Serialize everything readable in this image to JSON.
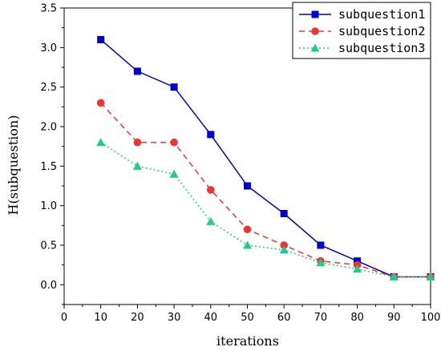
{
  "chart_data": {
    "type": "line",
    "title": "",
    "xlabel": "iterations",
    "ylabel": "H(subquestion)",
    "x": [
      10,
      20,
      30,
      40,
      50,
      60,
      70,
      80,
      90,
      100
    ],
    "xlim": [
      0,
      100
    ],
    "ylim": [
      -0.25,
      3.5
    ],
    "xticks": [
      "0",
      "10",
      "20",
      "30",
      "40",
      "50",
      "60",
      "70",
      "80",
      "90",
      "100"
    ],
    "yticks": [
      "0.0",
      "0.5",
      "1.0",
      "1.5",
      "2.0",
      "2.5",
      "3.0",
      "3.5"
    ],
    "grid": false,
    "legend_position": "top-right",
    "series": [
      {
        "name": "subquestion1",
        "values": [
          3.1,
          2.7,
          2.5,
          1.9,
          1.25,
          0.9,
          0.5,
          0.3,
          0.1,
          0.1
        ],
        "color": "#0000cc",
        "line_style": "solid",
        "marker": "square"
      },
      {
        "name": "subquestion2",
        "values": [
          2.3,
          1.8,
          1.8,
          1.2,
          0.7,
          0.5,
          0.3,
          0.25,
          0.1,
          0.1
        ],
        "color": "#ee3333",
        "line_style": "dashed",
        "marker": "circle"
      },
      {
        "name": "subquestion3",
        "values": [
          1.8,
          1.5,
          1.4,
          0.8,
          0.5,
          0.44,
          0.28,
          0.2,
          0.1,
          0.1
        ],
        "color": "#22cc88",
        "line_style": "dotted",
        "marker": "triangle"
      }
    ]
  }
}
